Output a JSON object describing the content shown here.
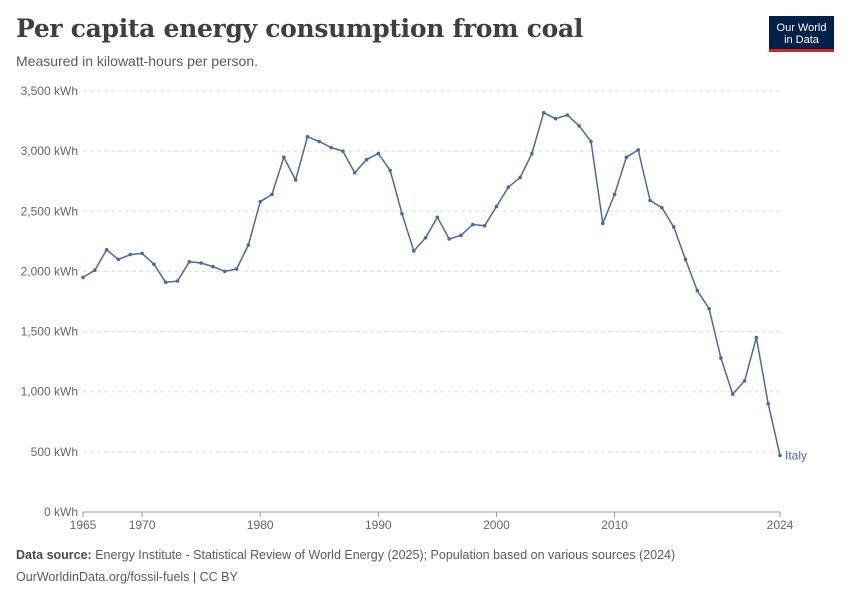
{
  "header": {
    "title": "Per capita energy consumption from coal",
    "subtitle": "Measured in kilowatt-hours per person.",
    "logo_line1": "Our World",
    "logo_line2": "in Data"
  },
  "footer": {
    "source_label": "Data source:",
    "source_text": "Energy Institute - Statistical Review of World Energy (2025); Population based on various sources (2024)",
    "url_license": "OurWorldinData.org/fossil-fuels | CC BY"
  },
  "colors": {
    "series": "#4c6a9c",
    "grid": "#dddddd",
    "axis_text": "#666666",
    "logo_bg": "#002147",
    "logo_accent": "#ce261e"
  },
  "chart_data": {
    "type": "line",
    "title": "Per capita energy consumption from coal",
    "subtitle": "Measured in kilowatt-hours per person.",
    "xlabel": "",
    "ylabel": "",
    "xlim": [
      1965,
      2024
    ],
    "ylim": [
      0,
      3500
    ],
    "x_ticks": [
      1965,
      1970,
      1980,
      1990,
      2000,
      2010,
      2024
    ],
    "x_tick_labels": [
      "1965",
      "1970",
      "1980",
      "1990",
      "2000",
      "2010",
      "2024"
    ],
    "y_ticks": [
      0,
      500,
      1000,
      1500,
      2000,
      2500,
      3000,
      3500
    ],
    "y_tick_labels": [
      "0 kWh",
      "500 kWh",
      "1,000 kWh",
      "1,500 kWh",
      "2,000 kWh",
      "2,500 kWh",
      "3,000 kWh",
      "3,500 kWh"
    ],
    "grid": "horizontal dashed",
    "legend": "end-of-line label",
    "x": [
      1965,
      1966,
      1967,
      1968,
      1969,
      1970,
      1971,
      1972,
      1973,
      1974,
      1975,
      1976,
      1977,
      1978,
      1979,
      1980,
      1981,
      1982,
      1983,
      1984,
      1985,
      1986,
      1987,
      1988,
      1989,
      1990,
      1991,
      1992,
      1993,
      1994,
      1995,
      1996,
      1997,
      1998,
      1999,
      2000,
      2001,
      2002,
      2003,
      2004,
      2005,
      2006,
      2007,
      2008,
      2009,
      2010,
      2011,
      2012,
      2013,
      2014,
      2015,
      2016,
      2017,
      2018,
      2019,
      2020,
      2021,
      2022,
      2023,
      2024
    ],
    "series": [
      {
        "name": "Italy",
        "values": [
          1950,
          2010,
          2180,
          2100,
          2140,
          2150,
          2060,
          1910,
          1920,
          2080,
          2070,
          2040,
          2000,
          2020,
          2220,
          2580,
          2640,
          2950,
          2760,
          3120,
          3080,
          3030,
          3000,
          2820,
          2930,
          2980,
          2840,
          2480,
          2170,
          2280,
          2450,
          2270,
          2300,
          2390,
          2380,
          2540,
          2700,
          2780,
          2980,
          3320,
          3270,
          3300,
          3210,
          3080,
          2400,
          2640,
          2950,
          3010,
          2590,
          2530,
          2370,
          2100,
          1840,
          1690,
          1280,
          980,
          1090,
          1450,
          900,
          470
        ]
      }
    ]
  }
}
